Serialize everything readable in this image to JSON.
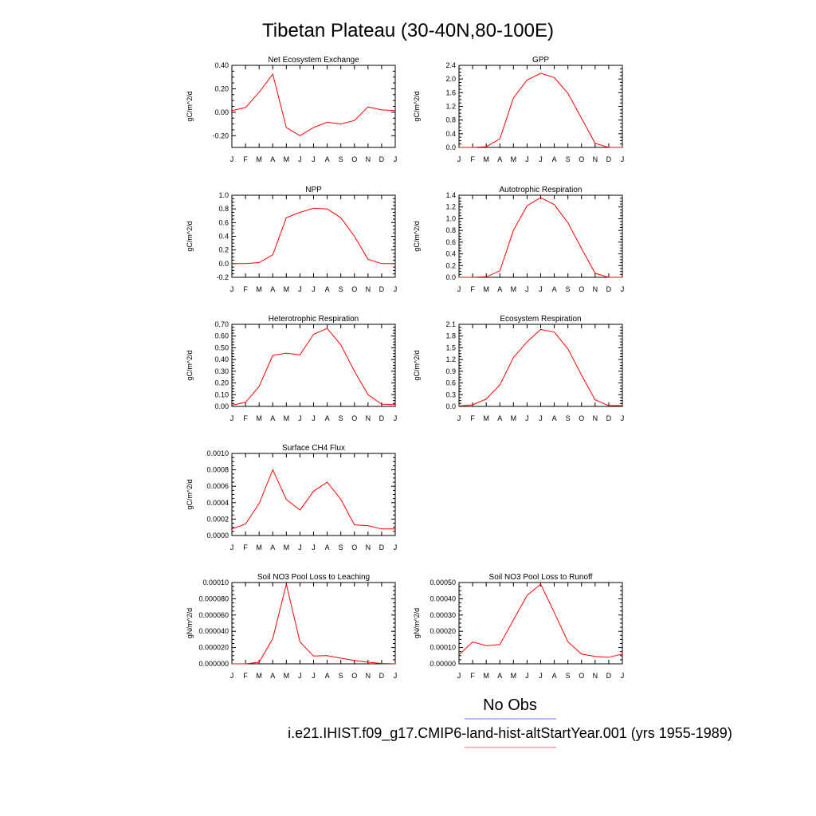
{
  "figure": {
    "title": "Tibetan Plateau (30-40N,80-100E)"
  },
  "chart_data": [
    {
      "type": "line",
      "title": "Net Ecosystem Exchange",
      "ylabel": "gC/m^2/d",
      "x": [
        "J",
        "F",
        "M",
        "A",
        "M",
        "J",
        "J",
        "A",
        "S",
        "O",
        "N",
        "D",
        "J"
      ],
      "ylim": [
        -0.3,
        0.4
      ],
      "yticks": [
        -0.2,
        0.0,
        0.2,
        0.4
      ],
      "yticklabels": [
        "-0.20",
        "0.00",
        "0.20",
        "0.40"
      ],
      "series": [
        {
          "color": "#ff0000",
          "values": [
            0.015,
            0.04,
            0.17,
            0.325,
            -0.13,
            -0.2,
            -0.13,
            -0.085,
            -0.1,
            -0.07,
            0.045,
            0.02,
            0.015
          ]
        }
      ]
    },
    {
      "type": "line",
      "title": "GPP",
      "ylabel": "gC/m^2/d",
      "x": [
        "J",
        "F",
        "M",
        "A",
        "M",
        "J",
        "J",
        "A",
        "S",
        "O",
        "N",
        "D",
        "J"
      ],
      "ylim": [
        0,
        2.4
      ],
      "yticks": [
        0,
        0.4,
        0.8,
        1.2,
        1.6,
        2.0,
        2.4
      ],
      "yticklabels": [
        "0.0",
        "0.4",
        "0.8",
        "1.2",
        "1.6",
        "2.0",
        "2.4"
      ],
      "series": [
        {
          "color": "#ff0000",
          "values": [
            0.0,
            0.0,
            0.02,
            0.25,
            1.45,
            1.97,
            2.17,
            2.04,
            1.58,
            0.85,
            0.12,
            0.0,
            0.0
          ]
        }
      ]
    },
    {
      "type": "line",
      "title": "NPP",
      "ylabel": "gC/m^2/d",
      "x": [
        "J",
        "F",
        "M",
        "A",
        "M",
        "J",
        "J",
        "A",
        "S",
        "O",
        "N",
        "D",
        "J"
      ],
      "ylim": [
        -0.2,
        1.0
      ],
      "yticks": [
        -0.2,
        0.0,
        0.2,
        0.4,
        0.6,
        0.8,
        1.0
      ],
      "yticklabels": [
        "-0.2",
        "0.0",
        "0.2",
        "0.4",
        "0.6",
        "0.8",
        "1.0"
      ],
      "series": [
        {
          "color": "#ff0000",
          "values": [
            0.0,
            0.0,
            0.015,
            0.13,
            0.67,
            0.75,
            0.81,
            0.8,
            0.67,
            0.4,
            0.065,
            0.0,
            0.0
          ]
        }
      ]
    },
    {
      "type": "line",
      "title": "Autotrophic Respiration",
      "ylabel": "gC/m^2/d",
      "x": [
        "J",
        "F",
        "M",
        "A",
        "M",
        "J",
        "J",
        "A",
        "S",
        "O",
        "N",
        "D",
        "J"
      ],
      "ylim": [
        0,
        1.4
      ],
      "yticks": [
        0,
        0.2,
        0.4,
        0.6,
        0.8,
        1.0,
        1.2,
        1.4
      ],
      "yticklabels": [
        "0.0",
        "0.2",
        "0.4",
        "0.6",
        "0.8",
        "1.0",
        "1.2",
        "1.4"
      ],
      "series": [
        {
          "color": "#ff0000",
          "values": [
            0.0,
            0.0,
            0.01,
            0.11,
            0.8,
            1.22,
            1.36,
            1.24,
            0.93,
            0.49,
            0.07,
            0.0,
            0.0
          ]
        }
      ]
    },
    {
      "type": "line",
      "title": "Heterotrophic Respiration",
      "ylabel": "gC/m^2/d",
      "x": [
        "J",
        "F",
        "M",
        "A",
        "M",
        "J",
        "J",
        "A",
        "S",
        "O",
        "N",
        "D",
        "J"
      ],
      "ylim": [
        0,
        0.7
      ],
      "yticks": [
        0,
        0.1,
        0.2,
        0.3,
        0.4,
        0.5,
        0.6,
        0.7
      ],
      "yticklabels": [
        "0.00",
        "0.10",
        "0.20",
        "0.30",
        "0.40",
        "0.50",
        "0.60",
        "0.70"
      ],
      "series": [
        {
          "color": "#ff0000",
          "values": [
            0.01,
            0.035,
            0.17,
            0.435,
            0.455,
            0.44,
            0.615,
            0.665,
            0.525,
            0.3,
            0.1,
            0.02,
            0.015
          ]
        }
      ]
    },
    {
      "type": "line",
      "title": "Ecosystem Respiration",
      "ylabel": "gC/m^2/d",
      "x": [
        "J",
        "F",
        "M",
        "A",
        "M",
        "J",
        "J",
        "A",
        "S",
        "O",
        "N",
        "D",
        "J"
      ],
      "ylim": [
        0,
        2.1
      ],
      "yticks": [
        0,
        0.3,
        0.6,
        0.9,
        1.2,
        1.5,
        1.8,
        2.1
      ],
      "yticklabels": [
        "0.0",
        "0.3",
        "0.6",
        "0.9",
        "1.2",
        "1.5",
        "1.8",
        "2.1"
      ],
      "series": [
        {
          "color": "#ff0000",
          "values": [
            0.01,
            0.04,
            0.19,
            0.55,
            1.25,
            1.65,
            1.97,
            1.9,
            1.47,
            0.8,
            0.17,
            0.02,
            0.02
          ]
        }
      ]
    },
    {
      "type": "line",
      "title": "Surface CH4 Flux",
      "ylabel": "gC/m^2/d",
      "x": [
        "J",
        "F",
        "M",
        "A",
        "M",
        "J",
        "J",
        "A",
        "S",
        "O",
        "N",
        "D",
        "J"
      ],
      "ylim": [
        0,
        0.001
      ],
      "yticks": [
        0,
        0.0002,
        0.0004,
        0.0006,
        0.0008,
        0.001
      ],
      "yticklabels": [
        "0.0000",
        "0.0002",
        "0.0004",
        "0.0006",
        "0.0008",
        "0.0010"
      ],
      "series": [
        {
          "color": "#ff0000",
          "values": [
            8e-05,
            0.00014,
            0.00039,
            0.0008,
            0.00044,
            0.00031,
            0.00054,
            0.00065,
            0.00044,
            0.00013,
            0.00012,
            8e-05,
            8e-05
          ]
        }
      ]
    },
    {
      "type": "line",
      "title": "Soil NO3 Pool Loss to Leaching",
      "ylabel": "gN/m^2/d",
      "x": [
        "J",
        "F",
        "M",
        "A",
        "M",
        "J",
        "J",
        "A",
        "S",
        "O",
        "N",
        "D",
        "J"
      ],
      "ylim": [
        0,
        0.0001
      ],
      "yticks": [
        0,
        2e-05,
        4e-05,
        6e-05,
        8e-05,
        0.0001
      ],
      "yticklabels": [
        "0.000000",
        "0.000020",
        "0.000040",
        "0.000060",
        "0.000080",
        "0.00010"
      ],
      "series": [
        {
          "color": "#ff0000",
          "values": [
            0.0,
            0.0,
            2e-06,
            3.1e-05,
            9.8e-05,
            2.7e-05,
            9.5e-06,
            1e-05,
            7e-06,
            4e-06,
            2e-06,
            5e-07,
            0.0
          ]
        }
      ]
    },
    {
      "type": "line",
      "title": "Soil NO3 Pool Loss to Runoff",
      "ylabel": "gN/m^2/d",
      "x": [
        "J",
        "F",
        "M",
        "A",
        "M",
        "J",
        "J",
        "A",
        "S",
        "O",
        "N",
        "D",
        "J"
      ],
      "ylim": [
        0,
        0.0005
      ],
      "yticks": [
        0,
        0.0001,
        0.0002,
        0.0003,
        0.0004,
        0.0005
      ],
      "yticklabels": [
        "0.00000",
        "0.00010",
        "0.00020",
        "0.00030",
        "0.00040",
        "0.00050"
      ],
      "series": [
        {
          "color": "#ff0000",
          "values": [
            5.5e-05,
            0.000135,
            0.000112,
            0.000118,
            0.00027,
            0.00042,
            0.00049,
            0.000315,
            0.000135,
            6e-05,
            4.5e-05,
            4e-05,
            6e-05
          ]
        }
      ]
    }
  ],
  "legend": {
    "obs_label": "No Obs",
    "obs_color": "#6f6fe0",
    "case_label": "i.e21.IHIST.f09_g17.CMIP6-land-hist-altStartYear.001 (yrs 1955-1989)",
    "case_color": "#ff6a6a"
  }
}
